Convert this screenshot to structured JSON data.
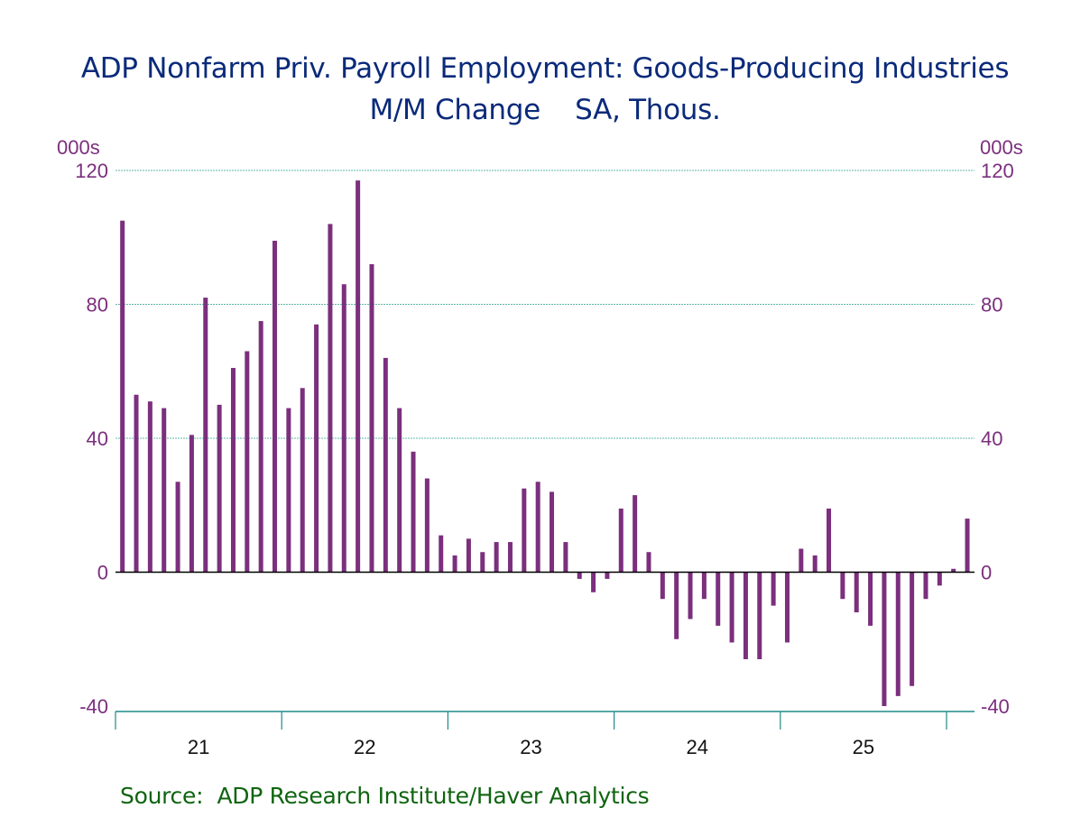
{
  "chart_data": {
    "type": "bar",
    "title": "ADP Nonfarm Priv. Payroll Employment: Goods-Producing Industries",
    "subtitle": "M/M Change    SA, Thous.",
    "ylabel_left": "000s",
    "ylabel_right": "000s",
    "ylim": [
      -40,
      120
    ],
    "yticks": [
      -40,
      0,
      40,
      80,
      120
    ],
    "ytick_labels": [
      "-40",
      "0",
      "40",
      "80",
      "120"
    ],
    "grid": true,
    "x_start": "2021-01",
    "frequency": "monthly",
    "x_tick_labels": [
      "21",
      "22",
      "23",
      "24",
      "25"
    ],
    "series": [
      {
        "name": "Goods-Producing Industries M/M Change",
        "color": "#7b2f7d",
        "values": [
          105,
          53,
          51,
          49,
          27,
          41,
          82,
          50,
          61,
          66,
          75,
          99,
          49,
          55,
          74,
          104,
          86,
          117,
          92,
          64,
          49,
          36,
          28,
          11,
          5,
          10,
          6,
          9,
          9,
          25,
          27,
          24,
          9,
          -2,
          -6,
          -2,
          19,
          23,
          6,
          -8,
          -20,
          -14,
          -8,
          -16,
          -21,
          -26,
          -26,
          -10,
          -21,
          7,
          5,
          19,
          -8,
          -12,
          -16,
          -40,
          -37,
          -34,
          -8,
          -4,
          1,
          16
        ]
      }
    ],
    "source": "Source:  ADP Research Institute/Haver Analytics"
  },
  "colors": {
    "title": "#0a2a7a",
    "bar": "#7b2f7d",
    "axis_labels": "#7b2f7d",
    "grid": "#5fb8a8",
    "axis": "#1f8a8a",
    "source": "#0f6410"
  }
}
